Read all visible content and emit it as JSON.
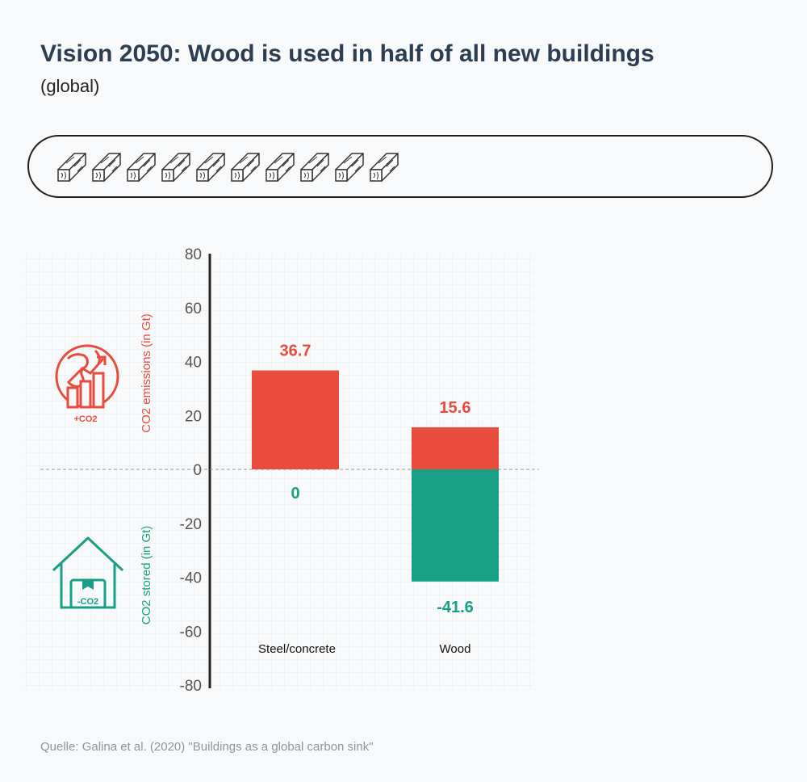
{
  "title": "Vision 2050: Wood is used in half of all new buildings",
  "subtitle": "(global)",
  "beam_bar": {
    "count": 10,
    "icon": "wood-beam-icon"
  },
  "icons": {
    "emissions": {
      "icon": "globe-growth-chart-icon",
      "label": "+CO2",
      "color": "#e74c3c"
    },
    "stored": {
      "icon": "house-storage-icon",
      "label": "-CO2",
      "color": "#17a085"
    }
  },
  "source": "Quelle: Galina et al. (2020) \"Buildings as a global carbon sink\"",
  "chart_data": {
    "type": "bar",
    "categories": [
      "Steel/concrete",
      "Wood"
    ],
    "series": [
      {
        "values": [
          36.7,
          15.6
        ],
        "color": "#e74c3c"
      },
      {
        "values": [
          0,
          -41.6
        ],
        "color": "#17a085"
      }
    ],
    "ylabel_top": "CO2 emissions (in Gt)",
    "ylabel_bottom": "CO2 stored (in Gt)",
    "ylim": [
      -80,
      80
    ],
    "yticks": [
      80,
      60,
      40,
      20,
      0,
      -20,
      -40,
      -60,
      -80
    ],
    "grid": true
  }
}
